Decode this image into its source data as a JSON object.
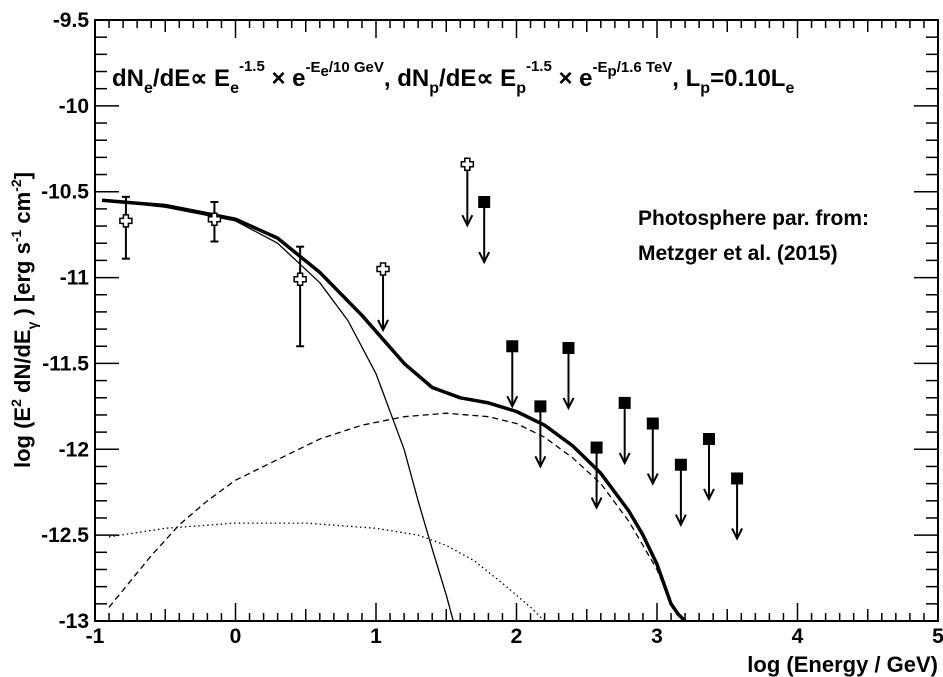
{
  "chart_data": {
    "type": "scatter",
    "title": "",
    "xlabel": "log (Energy / GeV)",
    "ylabel_parts": [
      "log (E",
      "2",
      " dN/dE",
      "γ",
      " ) [erg s",
      "-1",
      " cm",
      "-2",
      "]"
    ],
    "xlim": [
      -1,
      5
    ],
    "ylim": [
      -13,
      -9.5
    ],
    "x_ticks": [
      "-1",
      "0",
      "1",
      "2",
      "3",
      "4",
      "5"
    ],
    "y_ticks": [
      "-9.5",
      "-10",
      "-10.5",
      "-11",
      "-11.5",
      "-12",
      "-12.5",
      "-13"
    ],
    "grid": false,
    "formula": {
      "p1": "dN",
      "p1s": "e",
      "p2": "/dE∝ E",
      "p2s": "e",
      "p3": "-1.5",
      "p4": " × e",
      "p5": "-E",
      "p6": "e",
      "p7": "/10 GeV",
      "p8": ", dN",
      "p8s": "p",
      "p9": "/dE∝ E",
      "p9s": "p",
      "p10": "-1.5",
      "p11": " × e",
      "p12": "-E",
      "p13": "p",
      "p14": "/1.6 TeV",
      "p15": ", L",
      "p15s": "p",
      "p16": "=0.10L",
      "p16s": "e"
    },
    "annotation": [
      "Photosphere par. from:",
      "Metzger et al. (2015)"
    ],
    "series": [
      {
        "style": "thick-solid",
        "x": [
          -0.95,
          -0.5,
          0.0,
          0.3,
          0.6,
          0.9,
          1.2,
          1.4,
          1.6,
          1.8,
          2.0,
          2.2,
          2.4,
          2.6,
          2.8,
          2.9,
          3.0,
          3.1,
          3.15,
          3.2,
          3.25
        ],
        "y": [
          -10.55,
          -10.58,
          -10.66,
          -10.77,
          -10.97,
          -11.22,
          -11.5,
          -11.64,
          -11.7,
          -11.73,
          -11.78,
          -11.86,
          -11.98,
          -12.14,
          -12.36,
          -12.5,
          -12.67,
          -12.9,
          -12.96,
          -13.0,
          -13.05
        ]
      },
      {
        "style": "thin-solid",
        "x": [
          -0.95,
          -0.5,
          0.0,
          0.3,
          0.6,
          0.8,
          1.0,
          1.2,
          1.3,
          1.4,
          1.5,
          1.55,
          1.6
        ],
        "y": [
          -10.55,
          -10.59,
          -10.67,
          -10.8,
          -11.03,
          -11.25,
          -11.56,
          -12.0,
          -12.3,
          -12.58,
          -12.85,
          -13.0,
          -13.1
        ]
      },
      {
        "style": "dashed",
        "x": [
          -0.9,
          -0.8,
          -0.6,
          -0.4,
          -0.2,
          0.0,
          0.3,
          0.6,
          0.9,
          1.2,
          1.5,
          1.8,
          2.0,
          2.2,
          2.4,
          2.6,
          2.8,
          3.0,
          3.1,
          3.2
        ],
        "y": [
          -12.92,
          -12.82,
          -12.62,
          -12.44,
          -12.3,
          -12.18,
          -12.06,
          -11.94,
          -11.86,
          -11.81,
          -11.79,
          -11.81,
          -11.85,
          -11.93,
          -12.05,
          -12.2,
          -12.42,
          -12.7,
          -12.9,
          -13.0
        ]
      },
      {
        "style": "dotted",
        "x": [
          -0.9,
          -0.5,
          0.0,
          0.5,
          1.0,
          1.3,
          1.5,
          1.7,
          1.9,
          2.1,
          2.2,
          2.3
        ],
        "y": [
          -12.51,
          -12.46,
          -12.43,
          -12.43,
          -12.46,
          -12.5,
          -12.56,
          -12.65,
          -12.78,
          -12.92,
          -13.0,
          -13.05
        ]
      }
    ],
    "open_cross_points": [
      {
        "x": -0.78,
        "y": -10.67,
        "err_lo": -10.89,
        "err_hi": -10.53
      },
      {
        "x": -0.15,
        "y": -10.66,
        "err_lo": -10.79,
        "err_hi": -10.56
      },
      {
        "x": 0.46,
        "y": -11.01,
        "err_lo": -11.4,
        "err_hi": -10.82
      },
      {
        "x": 1.05,
        "y": -10.95,
        "upper_limit": true
      },
      {
        "x": 1.65,
        "y": -10.34,
        "upper_limit": true
      }
    ],
    "filled_square_upper_limits": [
      {
        "x": 1.77,
        "y": -10.56
      },
      {
        "x": 1.97,
        "y": -11.4
      },
      {
        "x": 2.17,
        "y": -11.75
      },
      {
        "x": 2.37,
        "y": -11.41
      },
      {
        "x": 2.57,
        "y": -11.99
      },
      {
        "x": 2.77,
        "y": -11.73
      },
      {
        "x": 2.97,
        "y": -11.85
      },
      {
        "x": 3.17,
        "y": -12.09
      },
      {
        "x": 3.37,
        "y": -11.94
      },
      {
        "x": 3.57,
        "y": -12.17
      }
    ]
  }
}
